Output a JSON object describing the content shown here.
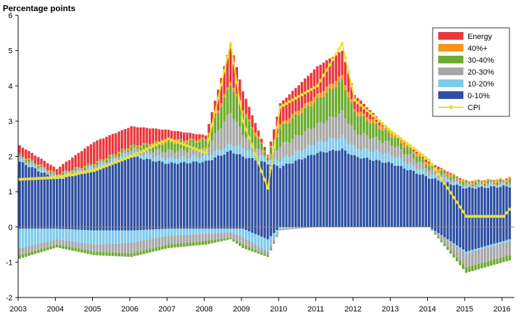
{
  "chart_data": {
    "type": "bar",
    "subtype": "stacked-monthly-with-line",
    "title": "",
    "ylabel": "Percentage points",
    "xlabel": "",
    "ylim": [
      -2,
      6
    ],
    "yticks": [
      -2,
      -1,
      0,
      1,
      2,
      3,
      4,
      5,
      6
    ],
    "year_labels": [
      "2003",
      "2004",
      "2005",
      "2006",
      "2007",
      "2008",
      "2009",
      "2010",
      "2011",
      "2012",
      "2013",
      "2014",
      "2015",
      "2016"
    ],
    "start": "2003-01",
    "grid": false,
    "legend_position": "top-right",
    "series": [
      {
        "name": "Energy",
        "color": "#e8383d"
      },
      {
        "name": "40%+",
        "color": "#f7941d"
      },
      {
        "name": "30-40%",
        "color": "#6aac2e"
      },
      {
        "name": "20-30%",
        "color": "#a6a6a6"
      },
      {
        "name": "10-20%",
        "color": "#7ecbea"
      },
      {
        "name": "0-10%",
        "color": "#2e4fa3"
      },
      {
        "name": "CPI",
        "color": "#e8e22a",
        "type": "line"
      }
    ],
    "annual_points": [
      {
        "date": "2003-01",
        "pos": [
          1.85,
          0.08,
          0.06,
          0.05,
          0.02,
          0.25
        ],
        "neg": [
          -0.05,
          -0.55,
          -0.2,
          -0.1,
          0,
          0
        ],
        "cpi": 1.35
      },
      {
        "date": "2004-01",
        "pos": [
          1.35,
          0.05,
          0.05,
          0.03,
          0.02,
          0.15
        ],
        "neg": [
          -0.05,
          -0.3,
          -0.15,
          -0.08,
          0,
          0
        ],
        "cpi": 1.4
      },
      {
        "date": "2005-01",
        "pos": [
          1.6,
          0.08,
          0.06,
          0.05,
          0.02,
          0.6
        ],
        "neg": [
          -0.1,
          -0.4,
          -0.2,
          -0.1,
          0,
          0
        ],
        "cpi": 1.6
      },
      {
        "date": "2006-01",
        "pos": [
          2.0,
          0.1,
          0.1,
          0.08,
          0.02,
          0.55
        ],
        "neg": [
          -0.1,
          -0.35,
          -0.3,
          -0.1,
          0,
          0
        ],
        "cpi": 2.0
      },
      {
        "date": "2007-01",
        "pos": [
          1.8,
          0.15,
          0.2,
          0.25,
          0.05,
          0.3
        ],
        "neg": [
          -0.05,
          -0.2,
          -0.25,
          -0.1,
          0,
          0
        ],
        "cpi": 2.5
      },
      {
        "date": "2008-01",
        "pos": [
          1.85,
          0.15,
          0.2,
          0.25,
          0.05,
          0.1
        ],
        "neg": [
          -0.05,
          -0.15,
          -0.2,
          -0.1,
          0,
          0
        ],
        "cpi": 2.1
      },
      {
        "date": "2008-09",
        "pos": [
          2.15,
          0.2,
          0.9,
          0.8,
          0.1,
          1.05
        ],
        "neg": [
          -0.05,
          -0.1,
          -0.15,
          -0.05,
          0,
          0
        ],
        "cpi": 5.2
      },
      {
        "date": "2009-01",
        "pos": [
          2.0,
          0.25,
          0.4,
          0.6,
          0.1,
          0.5
        ],
        "neg": [
          -0.05,
          -0.25,
          -0.2,
          -0.1,
          0,
          0
        ],
        "cpi": 3.0
      },
      {
        "date": "2009-09",
        "pos": [
          1.8,
          0.1,
          0.05,
          0.05,
          0.05,
          0.0
        ],
        "neg": [
          -0.35,
          -0.35,
          -0.1,
          -0.05,
          0,
          0
        ],
        "cpi": 1.1
      },
      {
        "date": "2010-01",
        "pos": [
          1.7,
          0.2,
          0.4,
          0.5,
          0.1,
          0.6
        ],
        "neg": [
          0,
          -0.05,
          -0.05,
          0,
          0,
          0
        ],
        "cpi": 3.4
      },
      {
        "date": "2011-01",
        "pos": [
          2.1,
          0.3,
          0.5,
          0.7,
          0.15,
          0.8
        ],
        "neg": [
          0,
          0,
          0,
          0,
          0,
          0
        ],
        "cpi": 4.0
      },
      {
        "date": "2011-09",
        "pos": [
          2.2,
          0.35,
          0.7,
          0.9,
          0.15,
          0.7
        ],
        "neg": [
          0,
          0,
          0,
          0,
          0,
          0
        ],
        "cpi": 5.2
      },
      {
        "date": "2012-01",
        "pos": [
          2.0,
          0.25,
          0.45,
          0.55,
          0.1,
          0.4
        ],
        "neg": [
          0,
          0,
          0,
          0,
          0,
          0
        ],
        "cpi": 3.6
      },
      {
        "date": "2013-01",
        "pos": [
          1.8,
          0.25,
          0.3,
          0.25,
          0.1,
          0.0
        ],
        "neg": [
          0,
          0,
          0,
          0,
          0,
          0
        ],
        "cpi": 2.7
      },
      {
        "date": "2014-01",
        "pos": [
          1.4,
          0.1,
          0.15,
          0.1,
          0.05,
          0.05
        ],
        "neg": [
          0,
          0,
          0,
          0,
          0,
          0
        ],
        "cpi": 1.9
      },
      {
        "date": "2015-01",
        "pos": [
          1.1,
          0.05,
          0.05,
          0.05,
          0.05,
          0.0
        ],
        "neg": [
          -0.7,
          -0.05,
          -0.4,
          -0.15,
          0,
          0
        ],
        "cpi": 0.3
      },
      {
        "date": "2016-01",
        "pos": [
          1.15,
          0.05,
          0.05,
          0.05,
          0.05,
          0.0
        ],
        "neg": [
          -0.4,
          -0.05,
          -0.4,
          -0.15,
          0,
          0
        ],
        "cpi": 0.3
      },
      {
        "date": "2016-03",
        "pos": [
          1.15,
          0.05,
          0.08,
          0.08,
          0.05,
          0.0
        ],
        "neg": [
          -0.35,
          -0.05,
          -0.4,
          -0.15,
          0,
          0
        ],
        "cpi": 0.5
      }
    ]
  }
}
